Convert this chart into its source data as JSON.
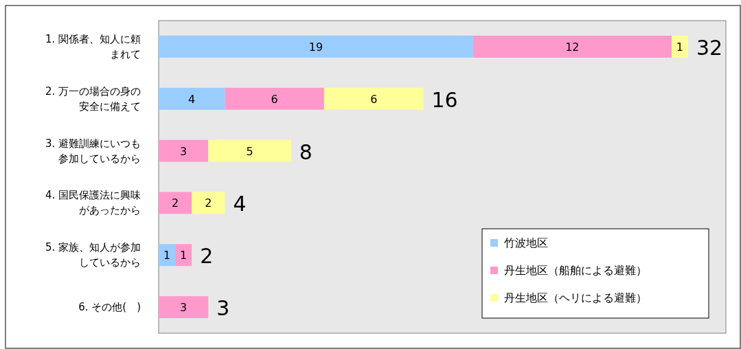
{
  "chart_data": {
    "type": "bar",
    "orientation": "horizontal",
    "stacked": true,
    "data_labels": true,
    "legend": "bottom right",
    "categories": [
      "1. 関係者、知人に頼まれて",
      "2. 万一の場合の身の安全に備えて",
      "3. 避難訓練にいつも参加しているから",
      "4. 国民保護法に興味があったから",
      "5. 家族、知人が参加しているから",
      "6. その他(　)"
    ],
    "series": [
      {
        "name": "竹波地区",
        "color": "#99ccff",
        "values": [
          19,
          4,
          null,
          null,
          1,
          null
        ]
      },
      {
        "name": "丹生地区（船舶による避難）",
        "color": "#ff99cc",
        "values": [
          12,
          6,
          3,
          2,
          1,
          3
        ]
      },
      {
        "name": "丹生地区（ヘリによる避難）",
        "color": "#ffff99",
        "values": [
          1,
          6,
          5,
          2,
          null,
          null
        ]
      }
    ],
    "totals": [
      "32",
      "16",
      "8",
      "4",
      "2",
      "3"
    ]
  }
}
